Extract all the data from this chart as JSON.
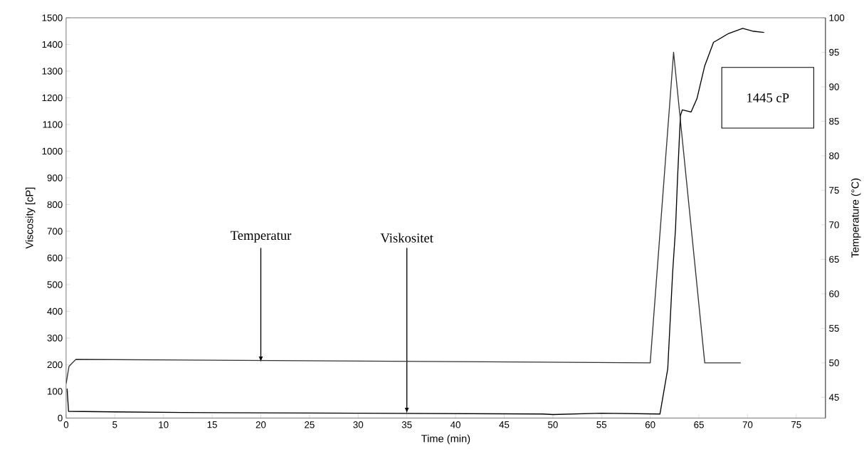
{
  "chart_data": {
    "type": "line",
    "xlabel": "Time (min)",
    "ylabel": "Viscosity [cP]",
    "y2label": "Temperature (°C)",
    "xlim": [
      0,
      78
    ],
    "xticks": [
      0,
      5,
      10,
      15,
      20,
      25,
      30,
      35,
      40,
      45,
      50,
      55,
      60,
      65,
      70,
      75
    ],
    "ylim": [
      0,
      1500
    ],
    "yticks": [
      0,
      100,
      200,
      300,
      400,
      500,
      600,
      700,
      800,
      900,
      1000,
      1100,
      1200,
      1300,
      1400,
      1500
    ],
    "y2lim": [
      42,
      100
    ],
    "y2ticks": [
      45,
      50,
      55,
      60,
      65,
      70,
      75,
      80,
      85,
      90,
      95,
      100
    ],
    "series": [
      {
        "color": "#000000",
        "x": [
          0.1,
          0.25,
          5,
          15,
          30,
          49,
          50,
          55,
          61,
          61.8,
          62.3,
          62.6,
          62.8,
          63.1,
          63.3,
          64.2,
          64.8,
          65.6,
          66.5,
          68,
          69.5,
          70.5,
          71.7
        ],
        "values": [
          110,
          25,
          23,
          20,
          18,
          15,
          13,
          18,
          15,
          185,
          544,
          710,
          893,
          1133,
          1155,
          1147,
          1197,
          1320,
          1408,
          1440,
          1460,
          1450,
          1445
        ]
      },
      {
        "color": "#333333",
        "axis": "y2",
        "x": [
          0,
          0.3,
          1,
          60,
          62.4,
          65.6,
          69.3
        ],
        "values": [
          47,
          49.5,
          50.5,
          50,
          95,
          50,
          50
        ]
      }
    ],
    "annotations": [
      {
        "text": "Temperatur",
        "x": 20,
        "y": 210
      },
      {
        "text": "Viskositet",
        "x": 35,
        "y": 18
      },
      "1445 cP"
    ],
    "grid": false
  }
}
